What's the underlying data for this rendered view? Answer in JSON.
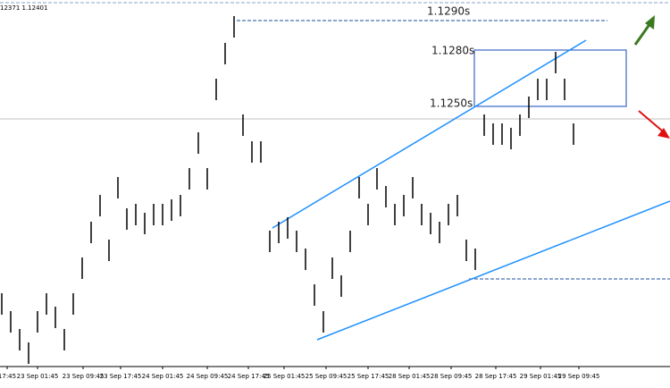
{
  "chart_data": {
    "type": "hlbar",
    "header": "12371 1.12401",
    "color": "#000000",
    "x": [
      0,
      1,
      2,
      3,
      4,
      5,
      6,
      7,
      8,
      9,
      10,
      11,
      12,
      13,
      14,
      15,
      16,
      17,
      18,
      19,
      20,
      21,
      22,
      23,
      24,
      25,
      26,
      27,
      28,
      29,
      30,
      31,
      32,
      33,
      34,
      35,
      36,
      37,
      38,
      39,
      40,
      41,
      42,
      43,
      44,
      45,
      46,
      47,
      48,
      49,
      50,
      51,
      52,
      53,
      54,
      55,
      56,
      57,
      58,
      59,
      60,
      61,
      62,
      63,
      64
    ],
    "high": [
      1.11688,
      1.11608,
      1.11528,
      1.11468,
      1.11608,
      1.11688,
      1.11628,
      1.11528,
      1.11688,
      1.11848,
      1.12008,
      1.12128,
      1.11928,
      1.12208,
      1.12068,
      1.12088,
      1.12048,
      1.12088,
      1.12088,
      1.12108,
      1.12128,
      1.12248,
      1.12408,
      1.12248,
      1.12648,
      1.12808,
      1.12928,
      1.12488,
      1.12368,
      1.12368,
      1.11968,
      1.12008,
      1.12028,
      1.11968,
      1.11888,
      1.11728,
      1.11608,
      1.11848,
      1.11768,
      1.11968,
      1.12208,
      1.12088,
      1.12248,
      1.12168,
      1.12088,
      1.12128,
      1.12208,
      1.12088,
      1.12048,
      1.12008,
      1.12088,
      1.12128,
      1.11928,
      1.11888,
      1.12488,
      1.12448,
      1.12448,
      1.12428,
      1.12488,
      1.12568,
      1.12648,
      1.12648,
      1.12768,
      1.12648,
      1.12448
    ],
    "low": [
      1.11592,
      1.11512,
      1.11432,
      1.11372,
      1.11512,
      1.11592,
      1.11532,
      1.11432,
      1.11592,
      1.11752,
      1.11912,
      1.12032,
      1.11832,
      1.12112,
      1.11972,
      1.11992,
      1.11952,
      1.11992,
      1.11992,
      1.12012,
      1.12032,
      1.12152,
      1.12312,
      1.12152,
      1.12552,
      1.12712,
      1.12832,
      1.12392,
      1.12272,
      1.12272,
      1.11872,
      1.11912,
      1.11932,
      1.11872,
      1.11792,
      1.11632,
      1.11512,
      1.11752,
      1.11672,
      1.11872,
      1.12112,
      1.11992,
      1.12152,
      1.12072,
      1.11992,
      1.12032,
      1.12112,
      1.11992,
      1.11952,
      1.11912,
      1.11992,
      1.12032,
      1.11832,
      1.11792,
      1.12392,
      1.12352,
      1.12352,
      1.12332,
      1.12392,
      1.12472,
      1.12552,
      1.12552,
      1.12672,
      1.12552,
      1.12352
    ],
    "xlim": [
      -0.2,
      74.8
    ],
    "ylim": [
      1.1136,
      1.13
    ],
    "xticks": [
      {
        "value": 0.6,
        "label": "17:45"
      },
      {
        "value": 4,
        "label": "23 Sep 01:45"
      },
      {
        "value": 9.1,
        "label": "23 Sep 09:45"
      },
      {
        "value": 13.3,
        "label": "23 Sep 17:45"
      },
      {
        "value": 18,
        "label": "24 Sep 01:45"
      },
      {
        "value": 23,
        "label": "24 Sep 09:45"
      },
      {
        "value": 27.6,
        "label": "24 Sep 17:45"
      },
      {
        "value": 31.6,
        "label": "25 Sep 01:45"
      },
      {
        "value": 36.3,
        "label": "25 Sep 09:45"
      },
      {
        "value": 41,
        "label": "25 Sep 17:45"
      },
      {
        "value": 45.6,
        "label": "28 Sep 01:45"
      },
      {
        "value": 50.3,
        "label": "28 Sep 09:45"
      },
      {
        "value": 55.3,
        "label": "28 Sep 17:45"
      },
      {
        "value": 60.3,
        "label": "29 Sep 01:45"
      },
      {
        "value": 64.6,
        "label": "29 Sep 09:45"
      }
    ],
    "annotations": [
      "1.1290s",
      "1.1280s",
      "1.1250s"
    ]
  }
}
